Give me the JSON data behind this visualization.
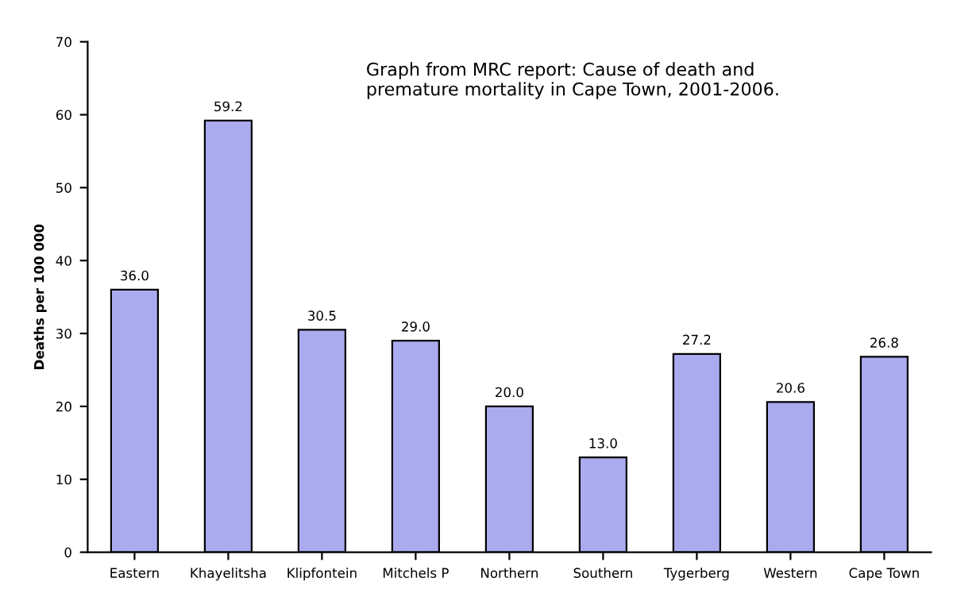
{
  "chart_data": {
    "type": "bar",
    "categories": [
      "Eastern",
      "Khayelitsha",
      "Klipfontein",
      "Mitchels P",
      "Northern",
      "Southern",
      "Tygerberg",
      "Western",
      "Cape Town"
    ],
    "values": [
      36.0,
      59.2,
      30.5,
      29.0,
      20.0,
      13.0,
      27.2,
      20.6,
      26.8
    ],
    "value_labels": [
      "36.0",
      "59.2",
      "30.5",
      "29.0",
      "20.0",
      "13.0",
      "27.2",
      "20.6",
      "26.8"
    ],
    "color": "#aaaaee",
    "ylabel": "Deaths per 100 000",
    "ylim": [
      0,
      70
    ],
    "yticks": [
      0,
      10,
      20,
      30,
      40,
      50,
      60,
      70
    ],
    "annotations": [
      "Graph from MRC report: Cause of death and\npremature mortality in Cape Town, 2001-2006."
    ],
    "grid": false,
    "legend": false
  }
}
